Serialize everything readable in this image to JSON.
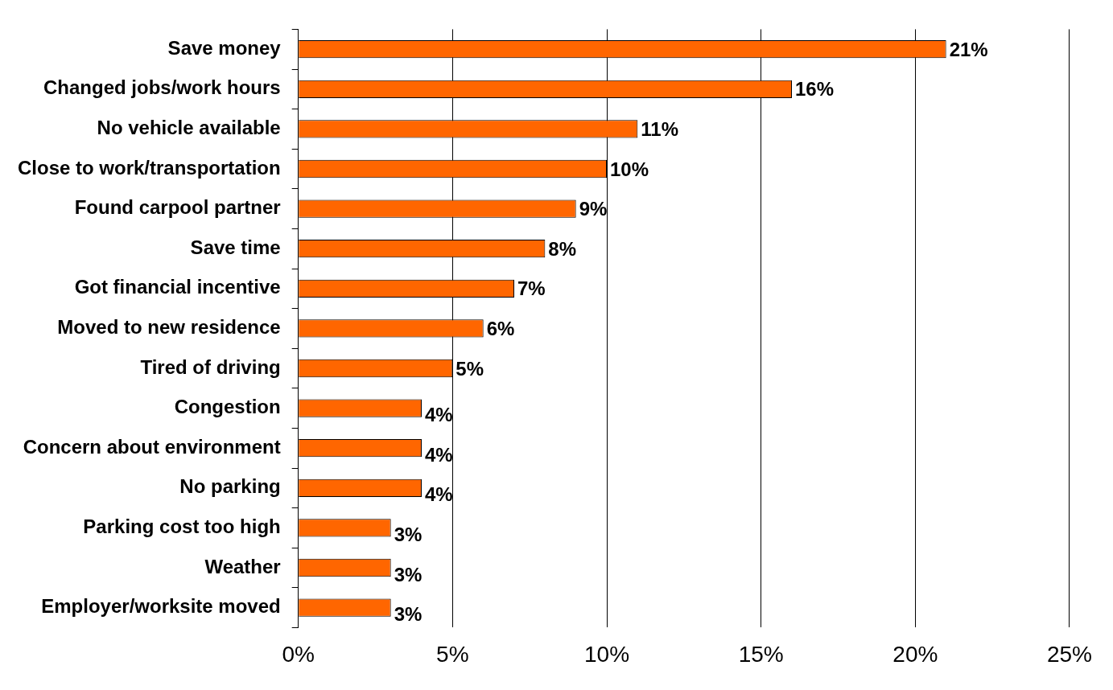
{
  "chart_data": {
    "type": "bar",
    "orientation": "horizontal",
    "categories": [
      "Save money",
      "Changed jobs/work hours",
      "No vehicle available",
      "Close to work/transportation",
      "Found carpool partner",
      "Save time",
      "Got financial incentive",
      "Moved to new residence",
      "Tired of driving",
      "Congestion",
      "Concern about environment",
      "No parking",
      "Parking cost too high",
      "Weather",
      "Employer/worksite moved"
    ],
    "values": [
      21,
      16,
      11,
      10,
      9,
      8,
      7,
      6,
      5,
      4,
      4,
      4,
      3,
      3,
      3
    ],
    "value_labels": [
      "21%",
      "16%",
      "11%",
      "10%",
      "9%",
      "8%",
      "7%",
      "6%",
      "5%",
      "4%",
      "4%",
      "4%",
      "3%",
      "3%",
      "3%"
    ],
    "color": "#ff6600",
    "xlim": [
      0,
      25
    ],
    "xticks": [
      {
        "value": 0,
        "label": "0%"
      },
      {
        "value": 5,
        "label": "5%"
      },
      {
        "value": 10,
        "label": "10%"
      },
      {
        "value": 15,
        "label": "15%"
      },
      {
        "value": 20,
        "label": "20%"
      },
      {
        "value": 25,
        "label": "25%"
      }
    ],
    "grid": "x",
    "legend": false
  }
}
